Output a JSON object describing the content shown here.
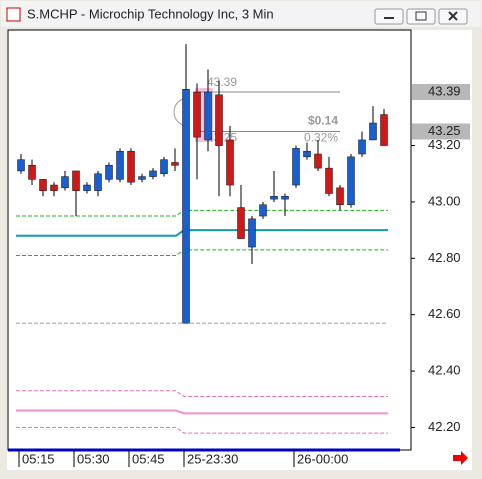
{
  "window_title": "S.MCHP - Microchip Technology Inc, 3 Min",
  "chart_data": {
    "type": "candlestick",
    "categories": [
      "05:15",
      null,
      null,
      null,
      null,
      "05:30",
      null,
      null,
      null,
      null,
      "05:45",
      null,
      null,
      null,
      null,
      "25-23:30",
      null,
      null,
      null,
      null,
      null,
      null,
      null,
      null,
      null,
      "26-00:00",
      null,
      null,
      null,
      null,
      null,
      null,
      null,
      null
    ],
    "open": [
      43.11,
      43.13,
      43.08,
      43.06,
      43.05,
      43.11,
      43.04,
      43.04,
      43.08,
      43.08,
      43.18,
      43.08,
      43.09,
      43.1,
      43.14,
      42.57,
      43.39,
      43.22,
      43.38,
      43.22,
      42.98,
      42.84,
      42.95,
      43.01,
      43.01,
      43.06,
      43.16,
      43.17,
      43.12,
      43.05,
      42.99,
      43.17,
      43.22,
      43.31
    ],
    "high": [
      43.17,
      43.15,
      43.08,
      43.07,
      43.11,
      43.11,
      43.07,
      43.11,
      43.14,
      43.19,
      43.19,
      43.1,
      43.12,
      43.16,
      43.19,
      43.56,
      43.42,
      43.47,
      43.43,
      43.27,
      43.06,
      42.95,
      43.0,
      43.11,
      43.03,
      43.2,
      43.21,
      43.22,
      43.16,
      43.06,
      43.17,
      43.25,
      43.34,
      43.33
    ],
    "low": [
      43.1,
      43.06,
      43.02,
      43.02,
      43.04,
      42.95,
      43.03,
      43.02,
      43.07,
      43.07,
      43.06,
      43.07,
      43.08,
      43.09,
      43.11,
      42.57,
      43.08,
      43.18,
      43.02,
      43.02,
      42.87,
      42.78,
      42.94,
      43.0,
      42.95,
      43.05,
      43.15,
      43.11,
      43.02,
      42.97,
      42.98,
      43.16,
      43.22,
      43.2
    ],
    "close": [
      43.15,
      43.08,
      43.04,
      43.04,
      43.09,
      43.04,
      43.06,
      43.1,
      43.13,
      43.18,
      43.07,
      43.09,
      43.11,
      43.15,
      43.13,
      43.4,
      43.23,
      43.39,
      43.2,
      43.06,
      42.87,
      42.94,
      42.99,
      43.02,
      43.02,
      43.19,
      43.18,
      43.12,
      43.03,
      42.99,
      43.16,
      43.22,
      43.28,
      43.2
    ],
    "up_color": "#1a5fd0",
    "down_color": "#d01818",
    "ylim": [
      42.12,
      43.61
    ],
    "yticks": [
      {
        "value": 42.2,
        "label": "42.20"
      },
      {
        "value": 42.4,
        "label": "42.40"
      },
      {
        "value": 42.6,
        "label": "42.60"
      },
      {
        "value": 42.8,
        "label": "42.80"
      },
      {
        "value": 43.0,
        "label": "43.00"
      },
      {
        "value": 43.2,
        "label": "43.20"
      }
    ],
    "axis_highlights": [
      43.39,
      43.25
    ],
    "levels": [
      {
        "color": "#22b022",
        "style": "dashed",
        "values": [
          42.95,
          42.97
        ]
      },
      {
        "color": "#22b022",
        "style": "dashed",
        "values": [
          42.81,
          42.83
        ]
      },
      {
        "color": "#109ca8",
        "style": "solid",
        "values": [
          42.88,
          42.9
        ]
      },
      {
        "color": "#a09aa8",
        "style": "dashed",
        "values": [
          42.57,
          42.57
        ]
      },
      {
        "color": "#e070c0",
        "style": "dashed",
        "values": [
          42.33,
          42.31
        ]
      },
      {
        "color": "#f090d0",
        "style": "solid",
        "values": [
          42.26,
          42.25
        ]
      },
      {
        "color": "#e070c0",
        "style": "dashed",
        "values": [
          42.2,
          42.18
        ]
      }
    ],
    "measure": {
      "high": 43.39,
      "low": 43.25,
      "change_label": "$0.14",
      "percent_label": "0.32%"
    }
  }
}
